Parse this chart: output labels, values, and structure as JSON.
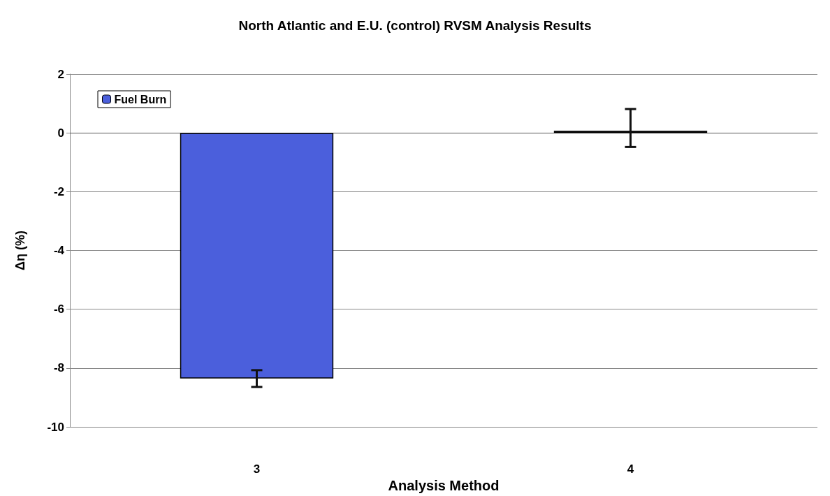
{
  "chart_data": {
    "type": "bar",
    "title": "North Atlantic and E.U. (control) RVSM Analysis Results",
    "xlabel": "Analysis Method",
    "ylabel": "Δη (%)",
    "categories": [
      "3",
      "4"
    ],
    "series": [
      {
        "name": "Fuel Burn",
        "color": "#4b5fdc",
        "values": [
          -8.35,
          0.07
        ],
        "errors": [
          [
            -8.64,
            -8.07
          ],
          [
            -0.48,
            0.81
          ]
        ]
      }
    ],
    "ylim": [
      -10,
      2
    ],
    "yticks": [
      -10,
      -8,
      -6,
      -4,
      -2,
      0,
      2
    ],
    "grid": "y",
    "legend": "top left"
  }
}
